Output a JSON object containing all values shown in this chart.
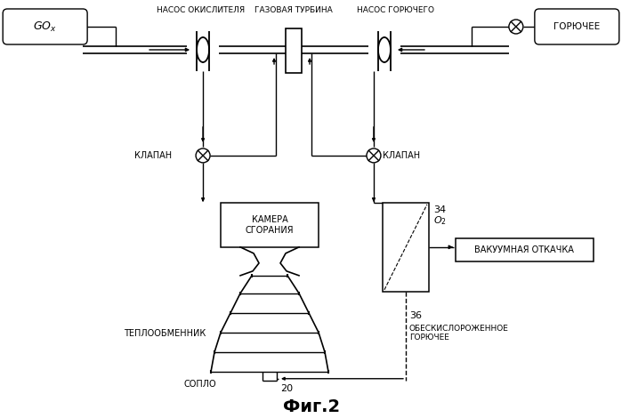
{
  "bg_color": "#ffffff",
  "line_color": "#000000",
  "title": "Фиг.2",
  "label_gox": "$GO_x$",
  "label_goryuchee": "ГОРЮЧЕЕ",
  "label_nasos_ok": "НАСОС ОКИСЛИТЕЛЯ",
  "label_gaz_turb": "ГАЗОВАЯ ТУРБИНА",
  "label_nasos_gor": "НАСОС ГОРЮЧЕГО",
  "label_klapan1": "КЛАПАН",
  "label_klapan2": "КЛАПАН",
  "label_kamera": "КАМЕРА\nСГОРАНИЯ",
  "label_teploobm": "ТЕПЛООБМЕННИК",
  "label_soplo": "СОПЛО",
  "label_34": "34",
  "label_o2": "$O_2$",
  "label_vak": "ВАКУУМНАЯ ОТКАЧКА",
  "label_36": "36",
  "label_obeskisl": "ОБЕСКИСЛОРОЖЕННОЕ\nГОРЮЧЕЕ",
  "label_20": "20"
}
